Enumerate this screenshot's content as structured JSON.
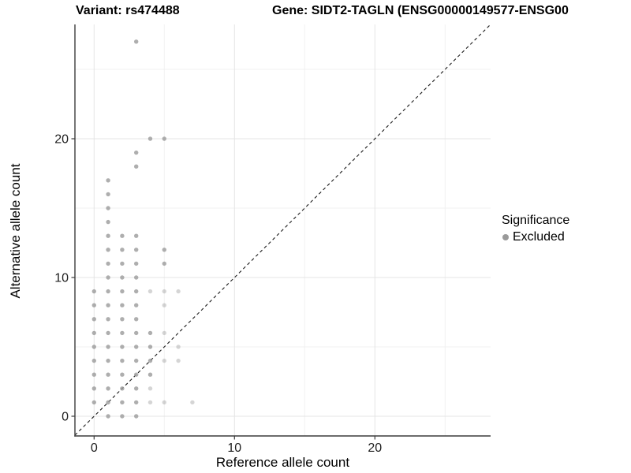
{
  "titles": {
    "variant": "Variant: rs474488",
    "gene": "Gene: SIDT2-TAGLN (ENSG00000149577-ENSG00"
  },
  "chart_data": {
    "type": "scatter",
    "xlabel": "Reference allele count",
    "ylabel": "Alternative allele count",
    "x_major_ticks": [
      0,
      10,
      20
    ],
    "y_major_ticks": [
      0,
      10,
      20
    ],
    "x_minor_ticks": [
      5,
      15,
      25
    ],
    "y_minor_ticks": [
      5,
      15,
      25
    ],
    "xlim": [
      -1.4,
      28.3
    ],
    "ylim": [
      -1.4,
      28.3
    ],
    "grid": "on",
    "identity_line": {
      "style": "dashed",
      "slope": 1,
      "intercept": 0
    },
    "legend_position": "right",
    "legend": {
      "title": "Significance",
      "items": [
        {
          "label": "Excluded",
          "color": "#9a9a9a"
        }
      ]
    },
    "series": [
      {
        "name": "Excluded",
        "color": "#9a9a9a",
        "points": [
          [
            3,
            27
          ],
          [
            4,
            20
          ],
          [
            5,
            20
          ],
          [
            3,
            19
          ],
          [
            3,
            18
          ],
          [
            1,
            17
          ],
          [
            1,
            16
          ],
          [
            1,
            15
          ],
          [
            1,
            14
          ],
          [
            1,
            13
          ],
          [
            2,
            13
          ],
          [
            3,
            13
          ],
          [
            1,
            12
          ],
          [
            2,
            12
          ],
          [
            3,
            12
          ],
          [
            5,
            12
          ],
          [
            1,
            11
          ],
          [
            2,
            11
          ],
          [
            3,
            11
          ],
          [
            5,
            11
          ],
          [
            1,
            10
          ],
          [
            2,
            10
          ],
          [
            3,
            10
          ],
          [
            0,
            9
          ],
          [
            1,
            9
          ],
          [
            2,
            9
          ],
          [
            3,
            9
          ],
          [
            0,
            8
          ],
          [
            1,
            8
          ],
          [
            2,
            8
          ],
          [
            3,
            8
          ],
          [
            0,
            7
          ],
          [
            1,
            7
          ],
          [
            2,
            7
          ],
          [
            3,
            7
          ],
          [
            0,
            6
          ],
          [
            1,
            6
          ],
          [
            2,
            6
          ],
          [
            3,
            6
          ],
          [
            4,
            6
          ],
          [
            0,
            5
          ],
          [
            1,
            5
          ],
          [
            2,
            5
          ],
          [
            3,
            5
          ],
          [
            4,
            5
          ],
          [
            0,
            4
          ],
          [
            1,
            4
          ],
          [
            2,
            4
          ],
          [
            3,
            4
          ],
          [
            4,
            4
          ],
          [
            0,
            3
          ],
          [
            1,
            3
          ],
          [
            2,
            3
          ],
          [
            3,
            3
          ],
          [
            4,
            3
          ],
          [
            0,
            2
          ],
          [
            1,
            2
          ],
          [
            2,
            2
          ],
          [
            3,
            2
          ],
          [
            0,
            1
          ],
          [
            1,
            1
          ],
          [
            2,
            1
          ],
          [
            3,
            1
          ],
          [
            1,
            0
          ],
          [
            2,
            0
          ],
          [
            3,
            0
          ]
        ],
        "points_faint": [
          [
            4,
            9
          ],
          [
            5,
            9
          ],
          [
            6,
            9
          ],
          [
            5,
            8
          ],
          [
            5,
            6
          ],
          [
            6,
            5
          ],
          [
            5,
            4
          ],
          [
            6,
            4
          ],
          [
            4,
            2
          ],
          [
            4,
            1
          ],
          [
            5,
            1
          ],
          [
            7,
            1
          ]
        ]
      }
    ]
  },
  "colors": {
    "point": "#9a9a9a",
    "grid_major": "#e4e4e4",
    "grid_minor": "#f1f1f1",
    "axis_line": "#3c3c3c",
    "identity_line": "#1a1a1a",
    "tick_text": "#1f1f1f"
  }
}
